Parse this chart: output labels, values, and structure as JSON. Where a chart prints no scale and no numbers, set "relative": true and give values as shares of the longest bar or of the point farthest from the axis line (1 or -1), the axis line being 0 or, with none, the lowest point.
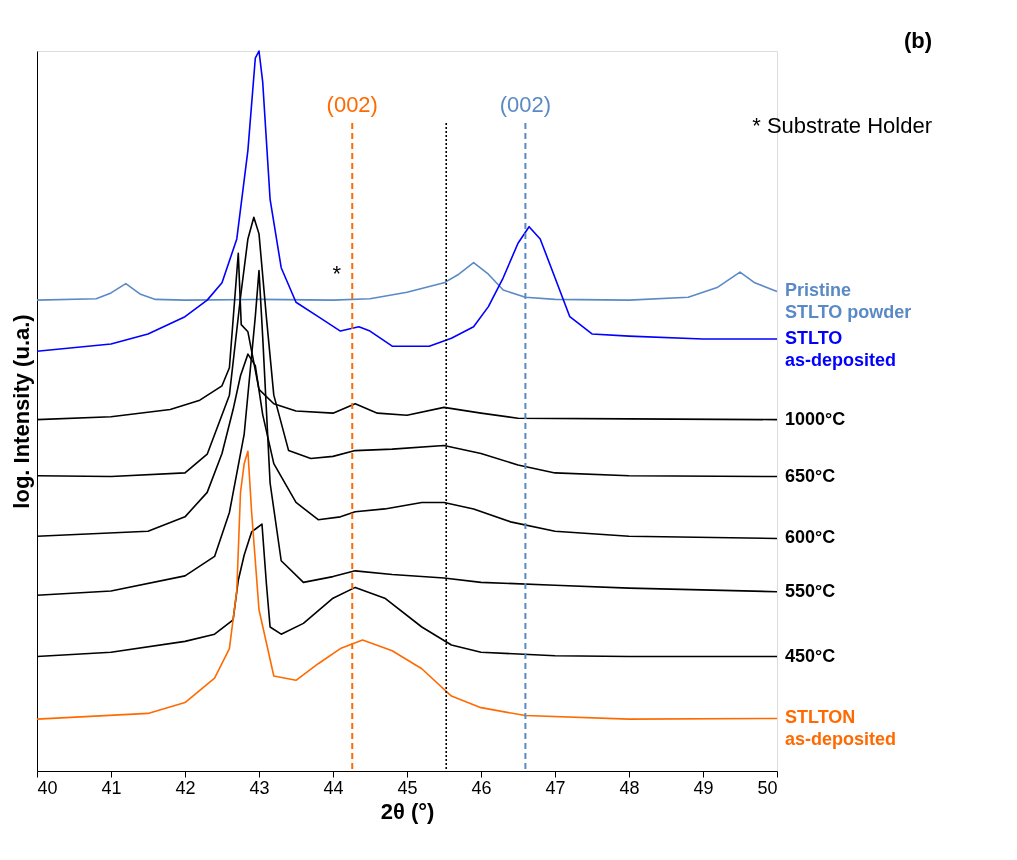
{
  "chart_data": {
    "type": "line",
    "relative": true,
    "xlabel": "2θ (°)",
    "ylabel": "log. Intensity (u.a.)",
    "xlim": [
      40,
      50
    ],
    "xticks": [
      40,
      41,
      42,
      43,
      44,
      45,
      46,
      47,
      48,
      49,
      50
    ],
    "annotations": [
      "(b)",
      "* Substrate Holder",
      "*",
      "(002)",
      "(002)"
    ],
    "ref_lines": [
      {
        "axis": "x",
        "value": 44.26,
        "color": "#ff6a00",
        "line_style": "dashed"
      },
      {
        "axis": "x",
        "value": 46.6,
        "color": "#5a8ac6",
        "line_style": "dashed"
      },
      {
        "axis": "x",
        "value": 45.53,
        "color": "#000000",
        "line_style": "dotted"
      }
    ],
    "series": [
      {
        "name": "Pristine STLTO powder",
        "color": "#5a8ac6",
        "x": [
          40,
          40.8,
          41.0,
          41.2,
          41.4,
          41.6,
          42,
          43,
          44,
          44.5,
          45,
          45.5,
          45.7,
          45.9,
          46.1,
          46.3,
          46.6,
          47,
          48,
          48.8,
          49.2,
          49.5,
          49.7,
          50
        ],
        "values": [
          0.654,
          0.656,
          0.664,
          0.677,
          0.662,
          0.655,
          0.654,
          0.655,
          0.654,
          0.656,
          0.665,
          0.678,
          0.69,
          0.706,
          0.69,
          0.668,
          0.658,
          0.655,
          0.654,
          0.658,
          0.672,
          0.693,
          0.678,
          0.666
        ]
      },
      {
        "name": "STLTO as-deposited",
        "color": "#0000ff",
        "x": [
          40,
          41,
          41.5,
          42,
          42.3,
          42.5,
          42.7,
          42.85,
          42.95,
          43.0,
          43.05,
          43.15,
          43.3,
          43.5,
          43.8,
          44.1,
          44.35,
          44.5,
          44.8,
          45.3,
          45.6,
          45.9,
          46.1,
          46.3,
          46.5,
          46.65,
          46.8,
          47.0,
          47.2,
          47.5,
          48,
          49,
          50
        ],
        "values": [
          0.583,
          0.593,
          0.607,
          0.631,
          0.654,
          0.678,
          0.739,
          0.862,
          0.99,
          1.0,
          0.957,
          0.794,
          0.699,
          0.651,
          0.631,
          0.611,
          0.617,
          0.611,
          0.59,
          0.59,
          0.601,
          0.617,
          0.645,
          0.685,
          0.733,
          0.756,
          0.739,
          0.685,
          0.631,
          0.607,
          0.604,
          0.6,
          0.6
        ]
      },
      {
        "name": "1000°C",
        "color": "#000000",
        "x": [
          40,
          41,
          41.8,
          42.2,
          42.5,
          42.6,
          42.66,
          42.72,
          42.76,
          42.85,
          43.0,
          43.2,
          43.5,
          44.0,
          44.3,
          44.6,
          45.0,
          45.5,
          46.0,
          46.5,
          48,
          50
        ],
        "values": [
          0.488,
          0.492,
          0.502,
          0.515,
          0.535,
          0.56,
          0.64,
          0.719,
          0.62,
          0.61,
          0.53,
          0.51,
          0.5,
          0.497,
          0.51,
          0.497,
          0.494,
          0.505,
          0.497,
          0.49,
          0.489,
          0.488
        ]
      },
      {
        "name": "650°C",
        "color": "#000000",
        "x": [
          40,
          41,
          42,
          42.3,
          42.6,
          42.75,
          42.85,
          42.93,
          43.0,
          43.1,
          43.2,
          43.4,
          43.7,
          44.0,
          44.3,
          44.8,
          45.5,
          46.0,
          46.5,
          47,
          48,
          50
        ],
        "values": [
          0.41,
          0.409,
          0.414,
          0.44,
          0.522,
          0.658,
          0.739,
          0.769,
          0.746,
          0.63,
          0.522,
          0.445,
          0.434,
          0.437,
          0.445,
          0.447,
          0.452,
          0.441,
          0.425,
          0.414,
          0.41,
          0.409
        ]
      },
      {
        "name": "600°C",
        "color": "#000000",
        "x": [
          40,
          41.5,
          42,
          42.3,
          42.5,
          42.65,
          42.75,
          42.85,
          42.95,
          43.05,
          43.2,
          43.5,
          43.8,
          44.1,
          44.3,
          44.7,
          45.2,
          45.5,
          45.9,
          46.4,
          47,
          48,
          50
        ],
        "values": [
          0.326,
          0.333,
          0.353,
          0.387,
          0.441,
          0.502,
          0.549,
          0.579,
          0.563,
          0.495,
          0.427,
          0.373,
          0.349,
          0.353,
          0.36,
          0.364,
          0.373,
          0.373,
          0.364,
          0.346,
          0.333,
          0.326,
          0.323
        ]
      },
      {
        "name": "550°C",
        "color": "#000000",
        "x": [
          40,
          41,
          42,
          42.4,
          42.6,
          42.8,
          42.95,
          43.0,
          43.05,
          43.15,
          43.3,
          43.6,
          44.0,
          44.3,
          44.8,
          45.5,
          46.0,
          47,
          48,
          50
        ],
        "values": [
          0.244,
          0.25,
          0.271,
          0.298,
          0.359,
          0.468,
          0.631,
          0.695,
          0.603,
          0.4,
          0.292,
          0.262,
          0.27,
          0.278,
          0.273,
          0.268,
          0.262,
          0.258,
          0.254,
          0.249
        ]
      },
      {
        "name": "450°C",
        "color": "#000000",
        "x": [
          40,
          41,
          42,
          42.4,
          42.65,
          42.72,
          42.8,
          42.9,
          43.04,
          43.1,
          43.15,
          43.3,
          43.6,
          44.0,
          44.3,
          44.7,
          45.2,
          45.6,
          46.0,
          47,
          48,
          50
        ],
        "values": [
          0.159,
          0.165,
          0.18,
          0.19,
          0.21,
          0.265,
          0.3,
          0.332,
          0.343,
          0.26,
          0.2,
          0.19,
          0.205,
          0.24,
          0.255,
          0.24,
          0.2,
          0.175,
          0.165,
          0.16,
          0.159,
          0.159
        ]
      },
      {
        "name": "STLTON as-deposited",
        "color": "#ff6a00",
        "x": [
          40,
          41.5,
          42,
          42.4,
          42.6,
          42.7,
          42.75,
          42.8,
          42.85,
          42.9,
          43.0,
          43.2,
          43.5,
          43.8,
          44.1,
          44.4,
          44.8,
          45.2,
          45.6,
          46,
          46.6,
          48,
          50
        ],
        "values": [
          0.072,
          0.08,
          0.095,
          0.129,
          0.17,
          0.251,
          0.387,
          0.427,
          0.444,
          0.36,
          0.224,
          0.132,
          0.126,
          0.149,
          0.17,
          0.182,
          0.167,
          0.142,
          0.104,
          0.088,
          0.077,
          0.072,
          0.073
        ]
      }
    ]
  }
}
